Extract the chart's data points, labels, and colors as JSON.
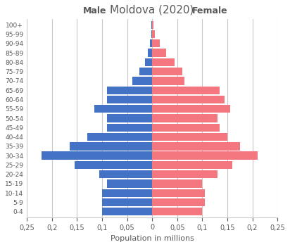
{
  "title": "Moldova (2020)",
  "xlabel": "Population in millions",
  "male_label": "Male",
  "female_label": "Female",
  "age_groups": [
    "0-4",
    "5-9",
    "10-14",
    "15-19",
    "20-24",
    "25-29",
    "30-34",
    "35-39",
    "40-44",
    "45-49",
    "50-54",
    "55-59",
    "60-64",
    "65-69",
    "70-74",
    "75-79",
    "80-84",
    "85-89",
    "90-94",
    "95-99",
    "100+"
  ],
  "male_values": [
    0.1,
    0.1,
    0.1,
    0.09,
    0.105,
    0.155,
    0.22,
    0.165,
    0.13,
    0.09,
    0.09,
    0.115,
    0.09,
    0.09,
    0.04,
    0.025,
    0.014,
    0.008,
    0.004,
    0.002,
    0.001
  ],
  "female_values": [
    0.1,
    0.105,
    0.105,
    0.1,
    0.13,
    0.16,
    0.21,
    0.175,
    0.15,
    0.135,
    0.13,
    0.155,
    0.145,
    0.135,
    0.065,
    0.06,
    0.045,
    0.028,
    0.015,
    0.005,
    0.003
  ],
  "male_color": "#4472C4",
  "female_color": "#F4777F",
  "xlim": 0.25,
  "background_color": "#FFFFFF",
  "grid_color": "#C8C8C8",
  "title_color": "#595959",
  "label_color": "#595959",
  "tick_color": "#595959"
}
